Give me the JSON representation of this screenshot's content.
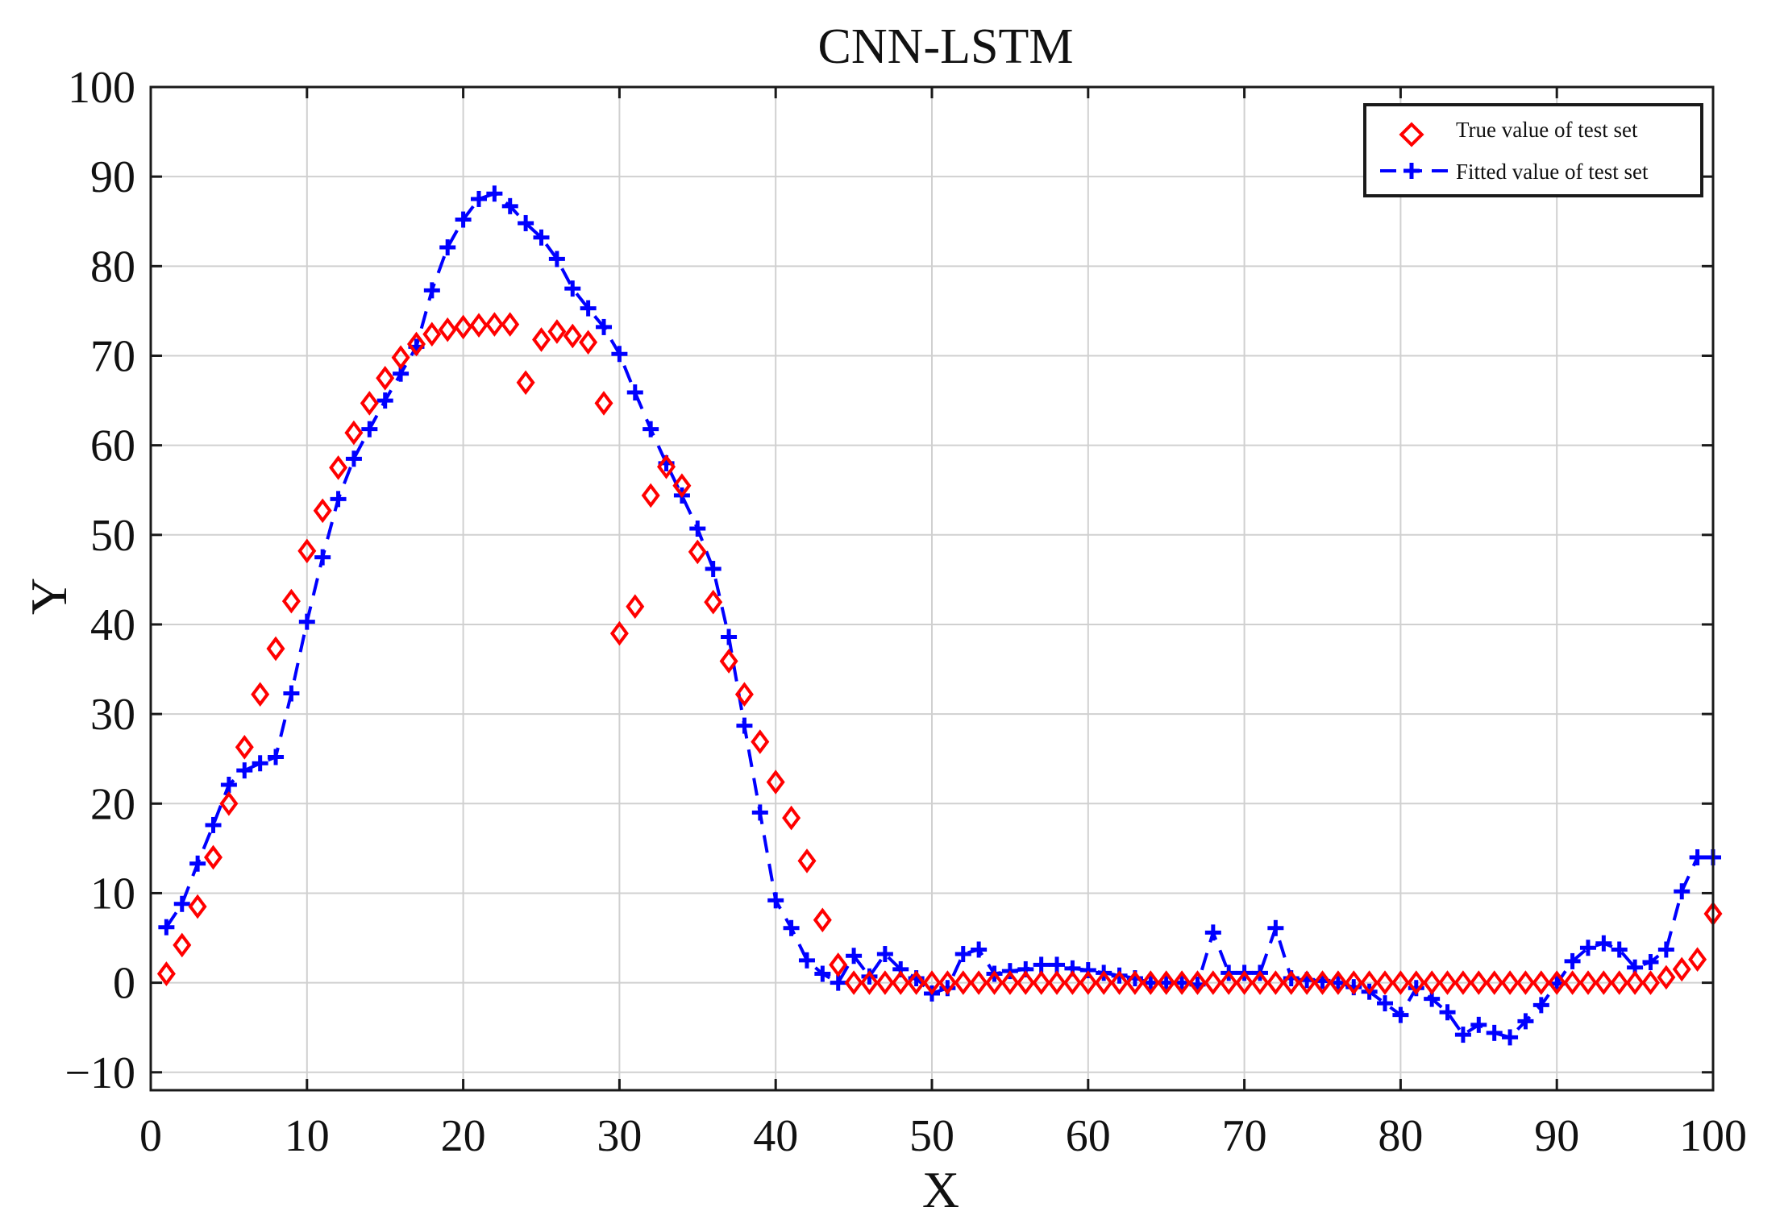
{
  "chart_data": {
    "type": "line",
    "title": "CNN-LSTM",
    "xlabel": "X",
    "ylabel": "Y",
    "xlim": [
      0,
      100
    ],
    "ylim": [
      -12,
      100
    ],
    "xticks": [
      0,
      10,
      20,
      30,
      40,
      50,
      60,
      70,
      80,
      90,
      100
    ],
    "yticks": [
      -10,
      0,
      10,
      20,
      30,
      40,
      50,
      60,
      70,
      80,
      90,
      100
    ],
    "xtick_labels": [
      "0",
      "10",
      "20",
      "30",
      "40",
      "50",
      "60",
      "70",
      "80",
      "90",
      "100"
    ],
    "ytick_labels": [
      "−10",
      "0",
      "10",
      "20",
      "30",
      "40",
      "50",
      "60",
      "70",
      "80",
      "90",
      "100"
    ],
    "grid": true,
    "legend_position": "top-right",
    "colors": {
      "true": "#ff0000",
      "fitted": "#0000ff"
    },
    "series": [
      {
        "name": "True value of test set",
        "style": "diamond-markers",
        "x": [
          1,
          2,
          3,
          4,
          5,
          6,
          7,
          8,
          9,
          10,
          11,
          12,
          13,
          14,
          15,
          16,
          17,
          18,
          19,
          20,
          21,
          22,
          23,
          24,
          25,
          26,
          27,
          28,
          29,
          30,
          31,
          32,
          33,
          34,
          35,
          36,
          37,
          38,
          39,
          40,
          41,
          42,
          43,
          44,
          45,
          46,
          47,
          48,
          49,
          50,
          51,
          52,
          53,
          54,
          55,
          56,
          57,
          58,
          59,
          60,
          61,
          62,
          63,
          64,
          65,
          66,
          67,
          68,
          69,
          70,
          71,
          72,
          73,
          74,
          75,
          76,
          77,
          78,
          79,
          80,
          81,
          82,
          83,
          84,
          85,
          86,
          87,
          88,
          89,
          90,
          91,
          92,
          93,
          94,
          95,
          96,
          97,
          98,
          99,
          100
        ],
        "values": [
          1,
          4.2,
          8.5,
          14,
          20,
          26.3,
          32.2,
          37.3,
          42.6,
          48.2,
          52.7,
          57.5,
          61.4,
          64.7,
          67.5,
          69.8,
          71.3,
          72.4,
          72.9,
          73.2,
          73.4,
          73.5,
          73.5,
          67,
          71.8,
          72.7,
          72.2,
          71.5,
          64.7,
          39,
          42,
          54.4,
          57.6,
          55.5,
          48.1,
          42.5,
          35.9,
          32.2,
          26.9,
          22.4,
          18.4,
          13.6,
          7,
          2,
          0,
          0,
          0,
          0,
          0,
          0,
          0,
          0,
          0,
          0,
          0,
          0,
          0,
          0,
          0,
          0,
          0,
          0,
          0,
          0,
          0,
          0,
          0,
          0,
          0,
          0,
          0,
          0,
          0,
          0,
          0,
          0,
          0,
          0,
          0,
          0,
          0,
          0,
          0,
          0,
          0,
          0,
          0,
          0,
          0,
          0,
          0,
          0,
          0,
          0,
          0,
          0,
          0.6,
          1.5,
          2.6,
          7.7
        ]
      },
      {
        "name": "Fitted value of test set",
        "style": "dashed-line-plus-markers",
        "x": [
          1,
          2,
          3,
          4,
          5,
          6,
          7,
          8,
          9,
          10,
          11,
          12,
          13,
          14,
          15,
          16,
          17,
          18,
          19,
          20,
          21,
          22,
          23,
          24,
          25,
          26,
          27,
          28,
          29,
          30,
          31,
          32,
          33,
          34,
          35,
          36,
          37,
          38,
          39,
          40,
          41,
          42,
          43,
          44,
          45,
          46,
          47,
          48,
          49,
          50,
          51,
          52,
          53,
          54,
          55,
          56,
          57,
          58,
          59,
          60,
          61,
          62,
          63,
          64,
          65,
          66,
          67,
          68,
          69,
          70,
          71,
          72,
          73,
          74,
          75,
          76,
          77,
          78,
          79,
          80,
          81,
          82,
          83,
          84,
          85,
          86,
          87,
          88,
          89,
          90,
          91,
          92,
          93,
          94,
          95,
          96,
          97,
          98,
          99,
          100
        ],
        "values": [
          6.2,
          8.8,
          13.3,
          17.6,
          22.1,
          23.7,
          24.5,
          25.2,
          32.3,
          40.3,
          47.5,
          54,
          58.5,
          61.8,
          65,
          68,
          71,
          77.3,
          82.1,
          85.2,
          87.5,
          88.1,
          86.7,
          84.8,
          83.2,
          80.8,
          77.5,
          75.3,
          73.2,
          70.2,
          65.9,
          61.8,
          58,
          54.4,
          50.7,
          46.2,
          38.6,
          28.7,
          19,
          9.2,
          6.1,
          2.5,
          1,
          0,
          3,
          0.7,
          3.2,
          1.5,
          0.5,
          -1.2,
          -0.6,
          3.2,
          3.7,
          1,
          1.3,
          1.5,
          2,
          2,
          1.6,
          1.4,
          1.1,
          0.8,
          0.5,
          0,
          0,
          0,
          -0.2,
          5.6,
          1.1,
          1.1,
          1.1,
          6.1,
          0.5,
          0.3,
          0.2,
          0,
          -0.5,
          -1,
          -2.3,
          -3.6,
          -0.6,
          -1.8,
          -3.3,
          -5.8,
          -4.7,
          -5.6,
          -6.1,
          -4.3,
          -2.5,
          -0.1,
          2.4,
          3.9,
          4.4,
          3.7,
          1.7,
          2.3,
          3.7,
          10.2,
          14,
          14
        ]
      }
    ]
  }
}
